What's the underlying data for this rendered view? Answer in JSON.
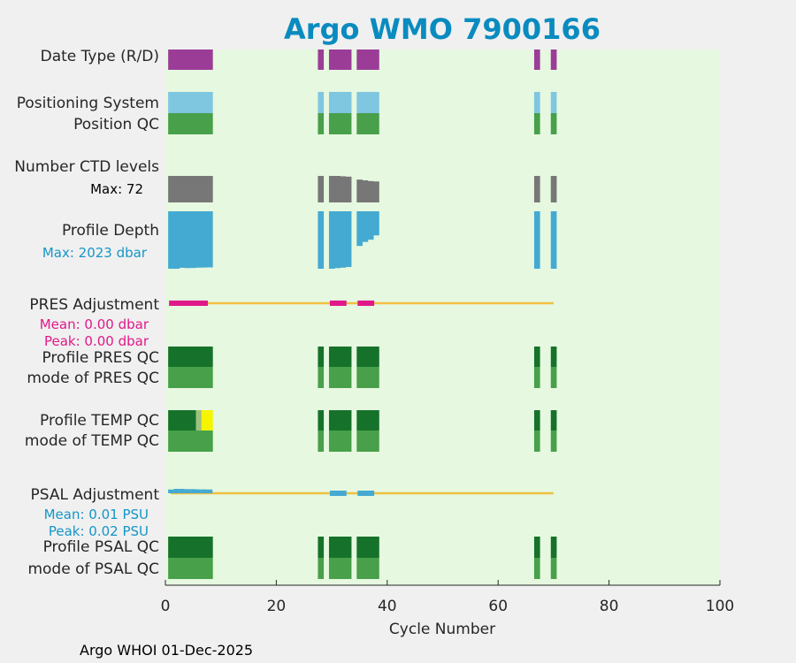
{
  "chart_data": {
    "type": "timeline",
    "title": "Argo WMO 7900166",
    "xlabel": "Cycle Number",
    "xlim": [
      0,
      100
    ],
    "xticks": [
      "0",
      "20",
      "40",
      "60",
      "80",
      "100"
    ],
    "footer": "Argo WHOI 01-Dec-2025",
    "cycles": [
      1,
      2,
      3,
      4,
      5,
      6,
      7,
      8,
      28,
      30,
      31,
      32,
      33,
      35,
      36,
      37,
      38,
      67,
      70
    ],
    "rows": [
      {
        "label": "Date Type (R/D)",
        "color": "#9b3d97"
      },
      {
        "label": "Positioning System",
        "color": "#7fc6e0"
      },
      {
        "label": "Position QC",
        "color": "#48a04a"
      },
      {
        "label": "Number CTD levels",
        "color": "#777777",
        "note": "Max: 72",
        "note_color": "#000000",
        "max": 72,
        "values": [
          72,
          72,
          72,
          72,
          72,
          72,
          72,
          72,
          72,
          72,
          72,
          71,
          70,
          62,
          60,
          58,
          57,
          72,
          72
        ]
      },
      {
        "label": "Profile Depth",
        "color": "#44aad2",
        "note": "Max: 2023 dbar",
        "note_color": "#1496c8",
        "max": 2023,
        "values": [
          2023,
          2023,
          1990,
          2000,
          1995,
          1985,
          1980,
          1975,
          2023,
          2023,
          2000,
          1985,
          1960,
          1220,
          1080,
          1000,
          850,
          2023,
          2023
        ]
      },
      {
        "label": "PRES Adjustment",
        "color": "#f0c040",
        "marker_color": "#e0198a",
        "range": [
          1,
          70
        ],
        "notes": [
          "Mean: 0.00 dbar",
          "Peak: 0.00 dbar"
        ],
        "note_color": "#e0198a",
        "segments": [
          [
            1,
            8
          ],
          [
            30,
            33
          ],
          [
            35,
            38
          ]
        ]
      },
      {
        "label": "Profile PRES QC",
        "color": "#16722a"
      },
      {
        "label": "mode of PRES QC",
        "color": "#48a04a"
      },
      {
        "label": "Profile TEMP QC",
        "color": "#16722a",
        "flag_color": "#f5f500",
        "mid_color": "#a0c080",
        "flag_cycles": [
          7,
          8
        ],
        "mid_cycles": [
          6
        ]
      },
      {
        "label": "mode of TEMP QC",
        "color": "#48a04a"
      },
      {
        "label": "PSAL Adjustment",
        "color": "#f0c040",
        "marker_color": "#44aad2",
        "range": [
          1,
          70
        ],
        "notes": [
          "Mean: 0.01 PSU",
          "Peak: 0.02 PSU"
        ],
        "note_color": "#1496c8",
        "segments": [
          [
            30,
            33
          ],
          [
            35,
            38
          ]
        ],
        "psal_values": [
          0.015,
          0.02,
          0.02,
          0.018,
          0.018,
          0.016,
          0.016,
          0.015
        ]
      },
      {
        "label": "Profile PSAL QC",
        "color": "#16722a"
      },
      {
        "label": "mode of PSAL QC",
        "color": "#48a04a"
      }
    ]
  }
}
